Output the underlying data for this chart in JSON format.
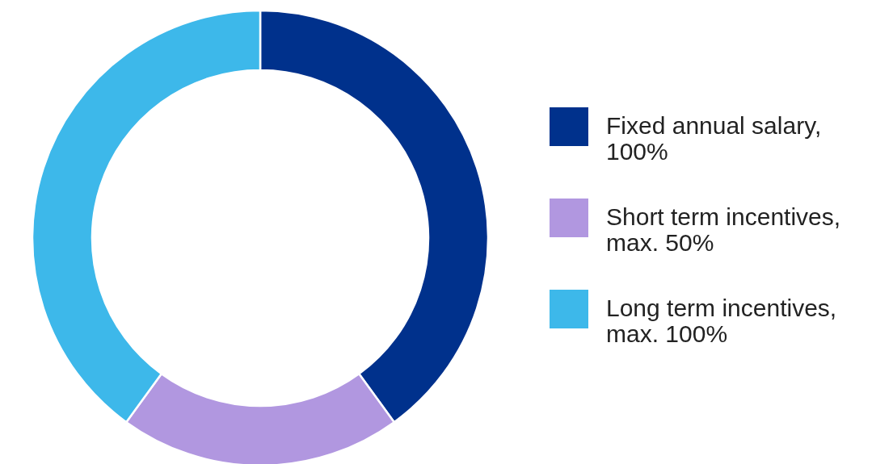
{
  "chart_data": {
    "type": "donut",
    "categories": [
      "Fixed annual salary, 100%",
      "Short term incentives, max. 50%",
      "Long term incentives, max. 100%"
    ],
    "values": [
      100,
      50,
      100
    ],
    "colors": [
      "#00318c",
      "#b197e0",
      "#3db8ea"
    ],
    "legend": "right"
  }
}
